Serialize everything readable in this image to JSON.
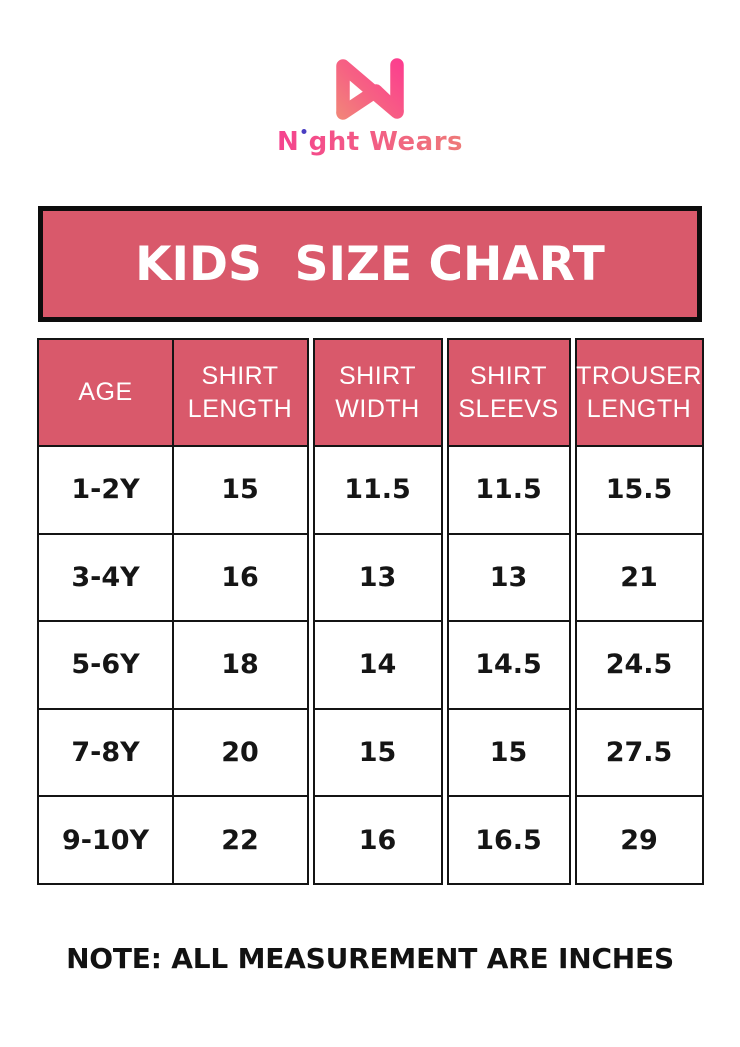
{
  "brand": {
    "name": "Night Wears",
    "wordmark": {
      "pre": "N",
      "i_dotless": "ı",
      "rest": "ght Wears",
      "full": "Night Wears"
    },
    "logo_colors": {
      "gradient_start": "#f18a78",
      "gradient_end": "#fd3a90",
      "text_gradient_start": "#f5438e",
      "text_gradient_end": "#ee7a78",
      "i_dot": "#4a3ec2"
    }
  },
  "banner": {
    "title": "KIDS  SIZE CHART",
    "background": "#d9596b",
    "border_color": "#0d0d0d",
    "text_color": "#ffffff"
  },
  "table": {
    "header_bg": "#d9596b",
    "header_text_color": "#ffffff",
    "border_color": "#141414",
    "columns": [
      {
        "key": "age",
        "header": "AGE",
        "values": [
          "1-2Y",
          "3-4Y",
          "5-6Y",
          "7-8Y",
          "9-10Y"
        ]
      },
      {
        "key": "shirt-length",
        "header": "SHIRT LENGTH",
        "values": [
          "15",
          "16",
          "18",
          "20",
          "22"
        ]
      },
      {
        "key": "shirt-width",
        "header": "SHIRT WIDTH",
        "values": [
          "11.5",
          "13",
          "14",
          "15",
          "16"
        ]
      },
      {
        "key": "shirt-sleevs",
        "header": "SHIRT SLEEVS",
        "values": [
          "11.5",
          "13",
          "14.5",
          "15",
          "16.5"
        ]
      },
      {
        "key": "trouser-length",
        "header": "TROUSER LENGTH",
        "values": [
          "15.5",
          "21",
          "24.5",
          "27.5",
          "29"
        ]
      }
    ]
  },
  "note": {
    "text": "NOTE: ALL MEASUREMENT ARE INCHES"
  },
  "chart_data": {
    "type": "table",
    "title": "KIDS SIZE CHART",
    "columns": [
      "AGE",
      "SHIRT LENGTH",
      "SHIRT WIDTH",
      "SHIRT SLEEVS",
      "TROUSER LENGTH"
    ],
    "rows": [
      [
        "1-2Y",
        15,
        11.5,
        11.5,
        15.5
      ],
      [
        "3-4Y",
        16,
        13,
        13,
        21
      ],
      [
        "5-6Y",
        18,
        14,
        14.5,
        24.5
      ],
      [
        "7-8Y",
        20,
        15,
        15,
        27.5
      ],
      [
        "9-10Y",
        22,
        16,
        16.5,
        29
      ]
    ],
    "units": "inches",
    "note": "NOTE: ALL MEASUREMENT ARE INCHES"
  }
}
